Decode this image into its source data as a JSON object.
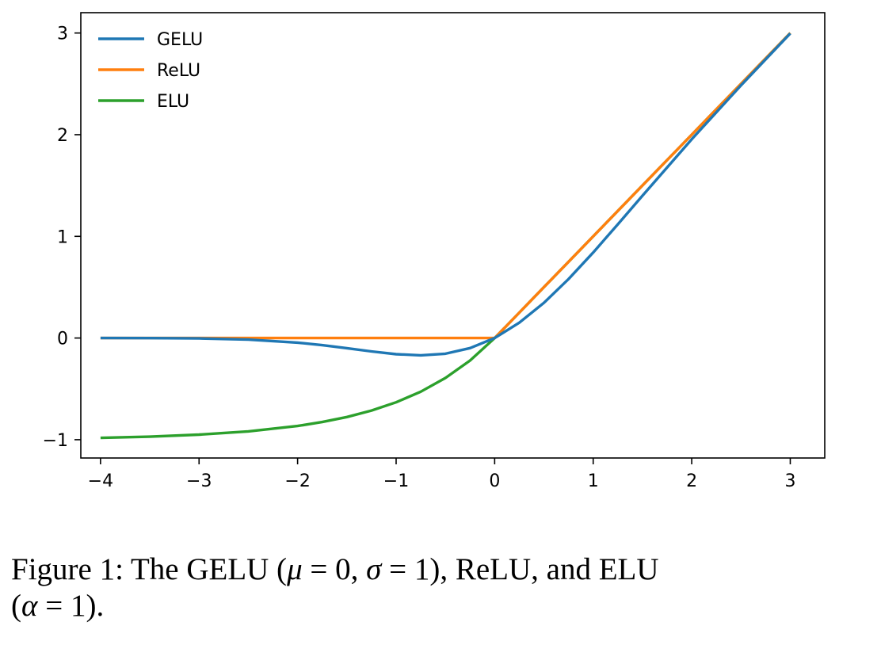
{
  "chart_data": {
    "type": "line",
    "title": "",
    "xlabel": "",
    "ylabel": "",
    "xlim": [
      -4.2,
      3.35
    ],
    "ylim": [
      -1.18,
      3.2
    ],
    "xticks": [
      -4,
      -3,
      -2,
      -1,
      0,
      1,
      2,
      3
    ],
    "xtick_labels": [
      "−4",
      "−3",
      "−2",
      "−1",
      "0",
      "1",
      "2",
      "3"
    ],
    "yticks": [
      -1,
      0,
      1,
      2,
      3
    ],
    "ytick_labels": [
      "−1",
      "0",
      "1",
      "2",
      "3"
    ],
    "grid": false,
    "legend_position": "upper-left",
    "x": [
      -4.0,
      -3.5,
      -3.0,
      -2.5,
      -2.0,
      -1.75,
      -1.5,
      -1.25,
      -1.0,
      -0.75,
      -0.5,
      -0.25,
      0.0,
      0.25,
      0.5,
      0.75,
      1.0,
      1.25,
      1.5,
      2.0,
      2.5,
      3.0
    ],
    "series": [
      {
        "name": "GELU",
        "color": "#1f77b4",
        "values": [
          0.0,
          -0.001,
          -0.004,
          -0.016,
          -0.045,
          -0.07,
          -0.1,
          -0.132,
          -0.159,
          -0.17,
          -0.154,
          -0.099,
          0.0,
          0.151,
          0.346,
          0.58,
          0.841,
          1.118,
          1.4,
          1.955,
          2.485,
          2.996
        ]
      },
      {
        "name": "ReLU",
        "color": "#ff7f0e",
        "values": [
          0.0,
          0.0,
          0.0,
          0.0,
          0.0,
          0.0,
          0.0,
          0.0,
          0.0,
          0.0,
          0.0,
          0.0,
          0.0,
          0.25,
          0.5,
          0.75,
          1.0,
          1.25,
          1.5,
          2.0,
          2.5,
          3.0
        ]
      },
      {
        "name": "ELU",
        "color": "#2ca02c",
        "values": [
          -0.982,
          -0.97,
          -0.95,
          -0.918,
          -0.865,
          -0.826,
          -0.777,
          -0.713,
          -0.632,
          -0.528,
          -0.393,
          -0.221,
          0.0,
          0.25,
          0.5,
          0.75,
          1.0,
          1.25,
          1.5,
          2.0,
          2.5,
          3.0
        ]
      }
    ]
  },
  "caption": {
    "part1": "Figure 1:  The GELU (",
    "mu": "μ",
    "part2": " = 0, ",
    "sigma": "σ",
    "part3": " = 1), ReLU, and ELU",
    "part4": "(",
    "alpha": "α",
    "part5": " = 1)."
  }
}
